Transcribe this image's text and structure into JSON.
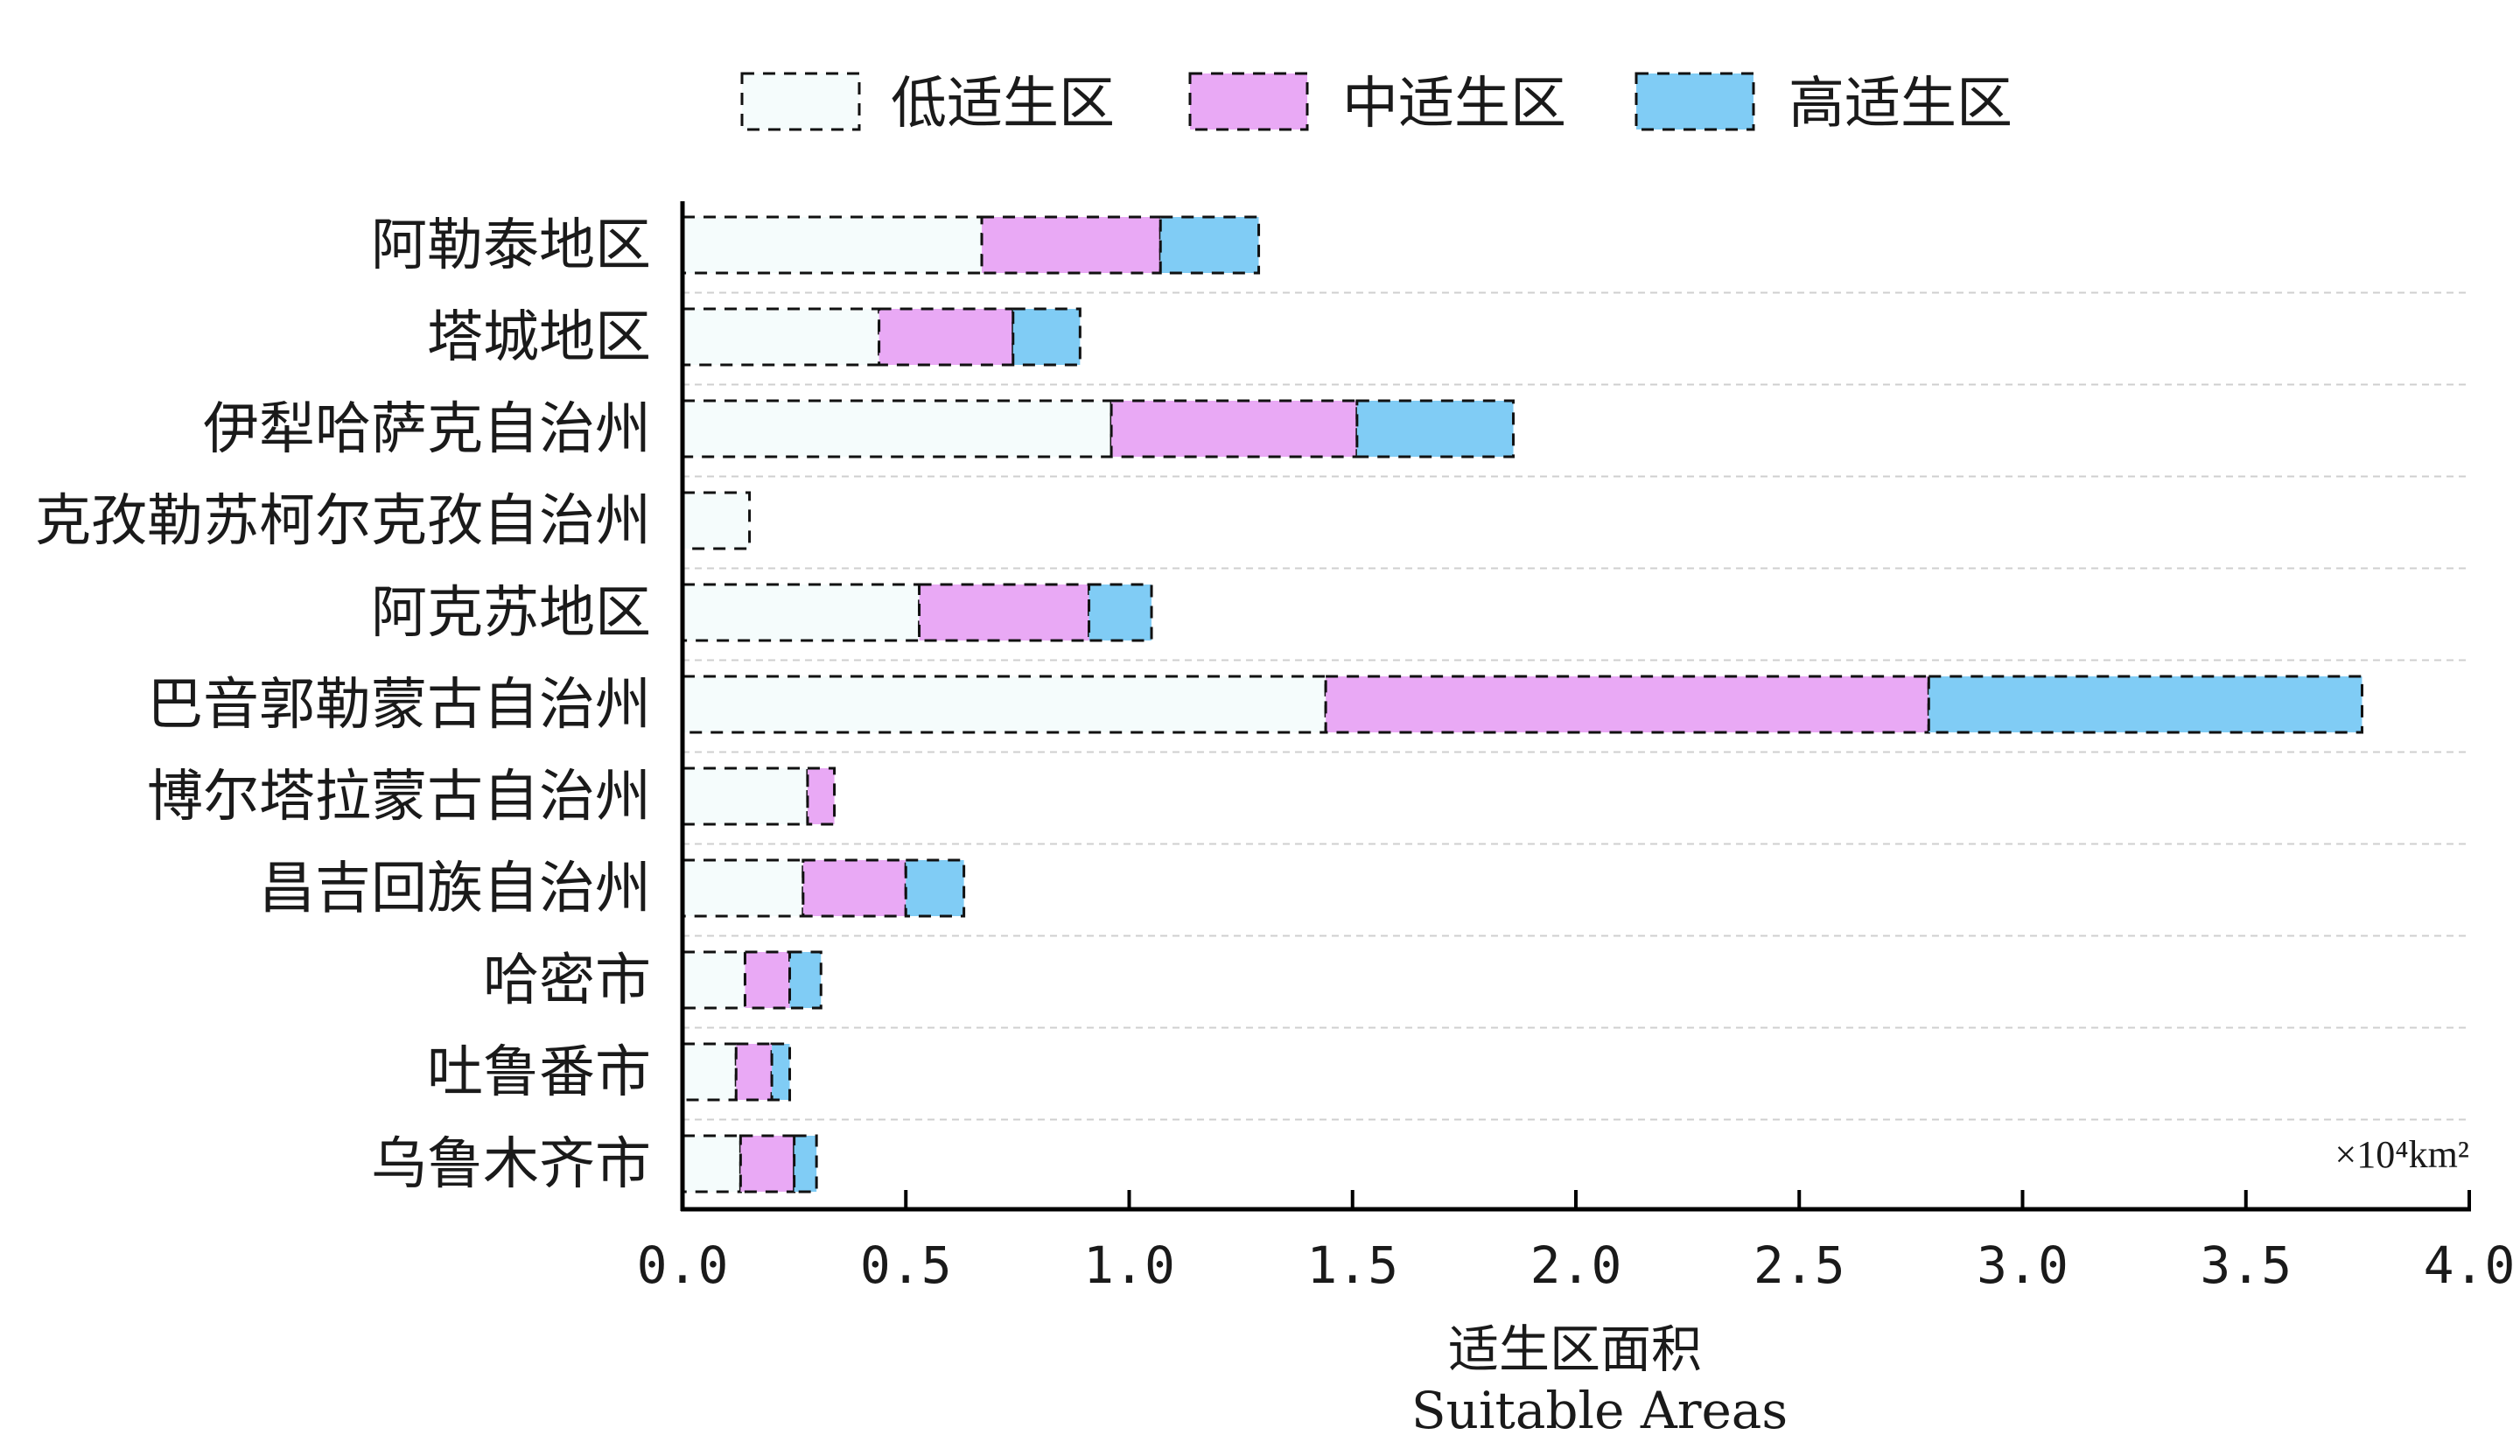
{
  "chart_data": {
    "type": "bar",
    "orientation": "horizontal",
    "stacked": true,
    "categories": [
      "阿勒泰地区",
      "塔城地区",
      "伊犁哈萨克自治州",
      "克孜勒苏柯尔克孜自治州",
      "阿克苏地区",
      "巴音郭勒蒙古自治州",
      "博尔塔拉蒙古自治州",
      "昌吉回族自治州",
      "哈密市",
      "吐鲁番市",
      "乌鲁木齐市"
    ],
    "series": [
      {
        "name": "低适生区",
        "color": "#f5fcfc",
        "values": [
          0.67,
          0.44,
          0.96,
          0.15,
          0.53,
          1.44,
          0.28,
          0.27,
          0.14,
          0.12,
          0.13
        ]
      },
      {
        "name": "中适生区",
        "color": "#e9a9f5",
        "values": [
          0.4,
          0.3,
          0.55,
          0.0,
          0.38,
          1.35,
          0.06,
          0.23,
          0.1,
          0.08,
          0.12
        ]
      },
      {
        "name": "高适生区",
        "color": "#80ccf5",
        "values": [
          0.22,
          0.15,
          0.35,
          0.0,
          0.14,
          0.97,
          0.0,
          0.13,
          0.07,
          0.04,
          0.05
        ]
      }
    ],
    "xlabel": "适生区面积",
    "xlabel_en": "Suitable Areas",
    "unit": "×10⁴km²",
    "xlim": [
      0,
      4.0
    ],
    "xticks": [
      "0.0",
      "0.5",
      "1.0",
      "1.5",
      "2.0",
      "2.5",
      "3.0",
      "3.5",
      "4.0"
    ],
    "xtick_values": [
      0,
      0.5,
      1.0,
      1.5,
      2.0,
      2.5,
      3.0,
      3.5,
      4.0
    ],
    "grid": "horizontal dashed",
    "legend_position": "top"
  }
}
